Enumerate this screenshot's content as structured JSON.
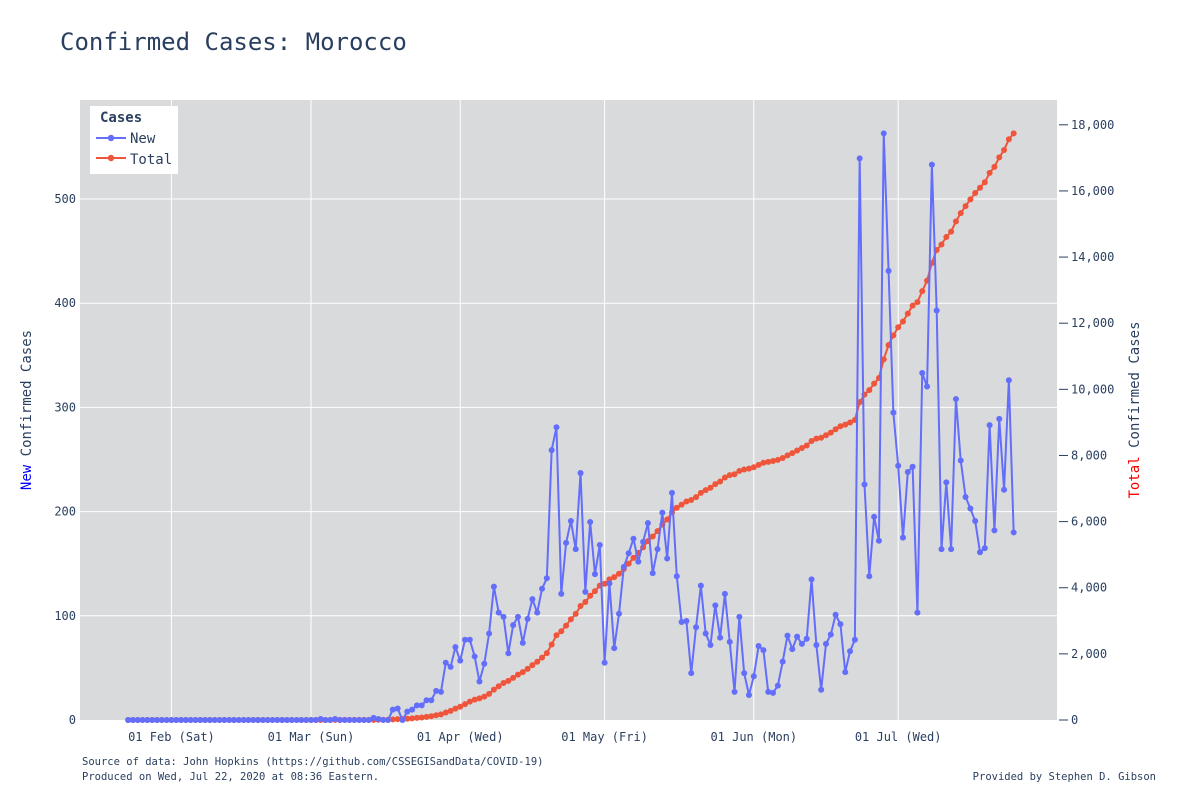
{
  "title": "Confirmed Cases: Morocco",
  "footer": {
    "source": "Source of data: John Hopkins (https://github.com/CSSEGISandData/COVID-19)",
    "produced": "Produced on Wed, Jul 22, 2020 at 08:36 Eastern.",
    "provided_by": "Provided by Stephen D. Gibson"
  },
  "colors": {
    "new": "#636efa",
    "total": "#ef553b",
    "plot_bg": "#d9dadc",
    "grid": "#ffffff",
    "text": "#2a3f5f",
    "new_word": "#0000ff",
    "total_word": "#ff0000"
  },
  "chart_data": {
    "type": "line",
    "legend": {
      "title": "Cases",
      "placement": "top-left",
      "entries": [
        "New",
        "Total"
      ]
    },
    "x_axis": {
      "range": [
        "2020-01-13",
        "2020-08-03"
      ],
      "ticks": [
        {
          "date": "2020-02-01",
          "label": "01 Feb (Sat)"
        },
        {
          "date": "2020-03-01",
          "label": "01 Mar (Sun)"
        },
        {
          "date": "2020-04-01",
          "label": "01 Apr (Wed)"
        },
        {
          "date": "2020-05-01",
          "label": "01 May (Fri)"
        },
        {
          "date": "2020-06-01",
          "label": "01 Jun (Mon)"
        },
        {
          "date": "2020-07-01",
          "label": "01 Jul (Wed)"
        }
      ]
    },
    "y_left": {
      "label_highlight": "New",
      "label_rest": " Confirmed Cases",
      "range": [
        0,
        595
      ],
      "ticks": [
        0,
        100,
        200,
        300,
        400,
        500
      ],
      "tick_labels": [
        "0",
        "100",
        "200",
        "300",
        "400",
        "500"
      ]
    },
    "y_right": {
      "label_highlight": "Total",
      "label_rest": " Confirmed Cases",
      "range": [
        0,
        18750
      ],
      "ticks": [
        0,
        2000,
        4000,
        6000,
        8000,
        10000,
        12000,
        14000,
        16000,
        18000
      ],
      "tick_labels": [
        "0",
        "2,000",
        "4,000",
        "6,000",
        "8,000",
        "10,000",
        "12,000",
        "14,000",
        "16,000",
        "18,000"
      ]
    },
    "start_date": "2020-01-23",
    "series": [
      {
        "name": "New",
        "axis": "left",
        "values": [
          0,
          0,
          0,
          0,
          0,
          0,
          0,
          0,
          0,
          0,
          0,
          0,
          0,
          0,
          0,
          0,
          0,
          0,
          0,
          0,
          0,
          0,
          0,
          0,
          0,
          0,
          0,
          0,
          0,
          0,
          0,
          0,
          0,
          0,
          0,
          0,
          0,
          0,
          0,
          0,
          1,
          0,
          0,
          1,
          0,
          0,
          0,
          0,
          0,
          0,
          0,
          2,
          1,
          0,
          0,
          10,
          11,
          0,
          8,
          10,
          14,
          14,
          19,
          19,
          28,
          27,
          55,
          51,
          70,
          57,
          77,
          77,
          61,
          37,
          54,
          83,
          128,
          103,
          99,
          64,
          91,
          99,
          74,
          97,
          116,
          103,
          126,
          136,
          259,
          281,
          121,
          170,
          191,
          164,
          237,
          123,
          190,
          140,
          168,
          55,
          131,
          69,
          102,
          147,
          160,
          174,
          152,
          171,
          189,
          141,
          164,
          199,
          155,
          218,
          138,
          94,
          95,
          45,
          89,
          129,
          83,
          72,
          110,
          79,
          121,
          75,
          27,
          99,
          45,
          24,
          42,
          71,
          67,
          27,
          26,
          33,
          56,
          81,
          68,
          80,
          73,
          78,
          135,
          72,
          29,
          73,
          82,
          101,
          92,
          46,
          66,
          77,
          539,
          226,
          138,
          195,
          172,
          563,
          431,
          295,
          244,
          175,
          238,
          243,
          103,
          333,
          320,
          533,
          393,
          164,
          228,
          164,
          308,
          249,
          214,
          203,
          191,
          161,
          165,
          283,
          182,
          289,
          221,
          326,
          180
        ]
      },
      {
        "name": "Total",
        "axis": "right",
        "values": [
          0,
          0,
          0,
          0,
          0,
          0,
          0,
          0,
          0,
          0,
          0,
          0,
          0,
          0,
          0,
          0,
          0,
          0,
          0,
          0,
          0,
          0,
          0,
          0,
          0,
          0,
          0,
          0,
          0,
          0,
          0,
          0,
          0,
          0,
          0,
          0,
          0,
          0,
          0,
          0,
          1,
          1,
          1,
          2,
          2,
          2,
          2,
          2,
          2,
          2,
          2,
          5,
          6,
          6,
          6,
          17,
          28,
          28,
          37,
          49,
          63,
          77,
          96,
          115,
          143,
          170,
          225,
          275,
          345,
          402,
          479,
          556,
          617,
          654,
          708,
          791,
          919,
          1021,
          1120,
          1184,
          1275,
          1374,
          1448,
          1545,
          1661,
          1763,
          1888,
          2024,
          2283,
          2564,
          2685,
          2855,
          3046,
          3209,
          3446,
          3568,
          3758,
          3897,
          4065,
          4120,
          4251,
          4321,
          4423,
          4569,
          4729,
          4903,
          5053,
          5219,
          5408,
          5548,
          5711,
          5910,
          6063,
          6281,
          6418,
          6512,
          6607,
          6652,
          6741,
          6870,
          6952,
          7023,
          7133,
          7211,
          7332,
          7406,
          7433,
          7532,
          7577,
          7601,
          7643,
          7714,
          7780,
          7807,
          7833,
          7866,
          7922,
          8003,
          8071,
          8151,
          8224,
          8302,
          8437,
          8508,
          8537,
          8610,
          8692,
          8793,
          8885,
          8931,
          8997,
          9074,
          9613,
          9839,
          9977,
          10172,
          10344,
          10907,
          11338,
          11633,
          11877,
          12052,
          12290,
          12533,
          12636,
          12969,
          13288,
          13822,
          14215,
          14379,
          14607,
          14771,
          15079,
          15328,
          15542,
          15745,
          15936,
          16097,
          16262,
          16545,
          16726,
          17015,
          17236,
          17562,
          17742
        ]
      }
    ]
  }
}
